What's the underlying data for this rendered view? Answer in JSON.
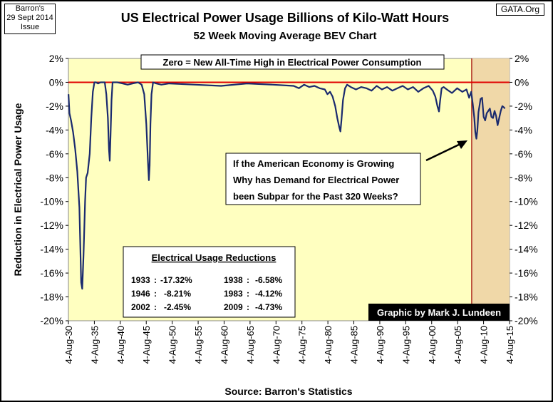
{
  "header": {
    "source_box": [
      "Barron's",
      "29 Sept 2014",
      "Issue"
    ],
    "credit_box": "GATA.Org",
    "title": "US Electrical Power Usage Billions of Kilo-Watt Hours",
    "subtitle": "52 Week Moving Average BEV Chart"
  },
  "annotations": {
    "zero_note": "Zero = New All-Time High in Electrical Power Consumption",
    "question_lines": [
      "If the American Economy is Growing",
      "Why has Demand for Electrical Power",
      "been Subpar for the Past 320 Weeks?"
    ],
    "reductions_title": "Electrical Usage Reductions",
    "reductions": [
      {
        "year": "1933",
        "value": "-17.32%"
      },
      {
        "year": "1938",
        "value": "-6.58%"
      },
      {
        "year": "1946",
        "value": "-8.21%"
      },
      {
        "year": "1983",
        "value": "-4.12%"
      },
      {
        "year": "2002",
        "value": "-2.45%"
      },
      {
        "year": "2009",
        "value": "-4.73%"
      }
    ],
    "graphic_credit": "Graphic by Mark J. Lundeen"
  },
  "colors": {
    "plot_bg": "#ffffc0",
    "shaded_region": "#f0d8a8",
    "series": "#1a2a6e",
    "zero_line": "#e00000",
    "credit_bg": "#000000"
  },
  "chart_data": {
    "type": "line",
    "title": "US Electrical Power Usage Billions of Kilo-Watt Hours",
    "subtitle": "52 Week Moving Average BEV Chart",
    "xlabel": "Source: Barron's Statistics",
    "ylabel": "Reduction in Electrical Power Usage",
    "ylim": [
      -20,
      2
    ],
    "xlim": [
      1930.59,
      2015.59
    ],
    "yticks": [
      "2%",
      "0%",
      "-2%",
      "-4%",
      "-6%",
      "-8%",
      "-10%",
      "-12%",
      "-14%",
      "-16%",
      "-18%",
      "-20%"
    ],
    "xticks": [
      "4-Aug-30",
      "4-Aug-35",
      "4-Aug-40",
      "4-Aug-45",
      "4-Aug-50",
      "4-Aug-55",
      "4-Aug-60",
      "4-Aug-65",
      "4-Aug-70",
      "4-Aug-75",
      "4-Aug-80",
      "4-Aug-85",
      "4-Aug-90",
      "4-Aug-95",
      "4-Aug-00",
      "4-Aug-05",
      "4-Aug-10",
      "4-Aug-15"
    ],
    "grid": false,
    "shaded_region": [
      2008.3,
      2015.59
    ],
    "series": [
      {
        "x": [
          1930.6,
          1930.8,
          1931.1,
          1931.5,
          1931.9,
          1932.3,
          1932.7,
          1932.9,
          1933.05,
          1933.25,
          1933.5,
          1933.8,
          1934.0,
          1934.3,
          1934.7,
          1935.0,
          1935.3,
          1935.6,
          1935.9,
          1936.3,
          1936.8,
          1937.2,
          1937.6,
          1937.9,
          1938.2,
          1938.4,
          1938.55,
          1938.7,
          1938.9,
          1939.1,
          1939.4,
          1940.0,
          1941.0,
          1942.0,
          1943.0,
          1944.0,
          1944.7,
          1945.2,
          1945.6,
          1945.9,
          1946.1,
          1946.25,
          1946.4,
          1946.6,
          1946.9,
          1947.5,
          1948.5,
          1950.0,
          1955.0,
          1960.0,
          1965.0,
          1970.0,
          1974.0,
          1975.0,
          1976.0,
          1977.0,
          1978.0,
          1979.0,
          1980.0,
          1980.5,
          1981.0,
          1981.5,
          1982.0,
          1982.4,
          1982.8,
          1983.0,
          1983.2,
          1983.5,
          1983.9,
          1984.3,
          1985.0,
          1986.0,
          1987.0,
          1988.0,
          1989.0,
          1990.0,
          1991.0,
          1992.0,
          1993.0,
          1994.0,
          1995.0,
          1996.0,
          1997.0,
          1998.0,
          1999.0,
          2000.0,
          2000.8,
          2001.3,
          2001.7,
          2002.0,
          2002.2,
          2002.5,
          2002.9,
          2003.5,
          2004.5,
          2005.5,
          2006.5,
          2007.3,
          2007.8,
          2008.2,
          2008.5,
          2008.8,
          2009.0,
          2009.2,
          2009.4,
          2009.6,
          2009.8,
          2010.0,
          2010.3,
          2010.6,
          2010.9,
          2011.2,
          2011.5,
          2011.8,
          2012.1,
          2012.4,
          2012.7,
          2013.0,
          2013.3,
          2013.6,
          2013.9,
          2014.2,
          2014.5,
          2014.7
        ],
        "y": [
          -1.0,
          -2.6,
          -3.2,
          -4.2,
          -5.6,
          -7.5,
          -10.5,
          -14.0,
          -16.8,
          -17.32,
          -14.5,
          -10.0,
          -8.0,
          -7.6,
          -6.0,
          -3.0,
          -0.8,
          0.0,
          0.0,
          -0.1,
          0.0,
          0.0,
          0.0,
          -1.0,
          -3.0,
          -5.6,
          -6.58,
          -4.5,
          -1.5,
          0.0,
          0.0,
          0.0,
          -0.1,
          -0.2,
          -0.1,
          0.0,
          -0.2,
          -1.0,
          -3.5,
          -6.5,
          -8.21,
          -7.0,
          -3.5,
          -1.0,
          0.0,
          -0.1,
          -0.2,
          -0.1,
          -0.2,
          -0.3,
          -0.1,
          -0.2,
          -0.3,
          -0.5,
          -0.2,
          -0.4,
          -0.3,
          -0.5,
          -0.6,
          -1.0,
          -0.8,
          -1.2,
          -2.0,
          -3.0,
          -3.8,
          -4.12,
          -3.2,
          -1.5,
          -0.5,
          -0.2,
          -0.4,
          -0.6,
          -0.4,
          -0.5,
          -0.7,
          -0.3,
          -0.6,
          -0.4,
          -0.7,
          -0.5,
          -0.3,
          -0.6,
          -0.4,
          -0.8,
          -0.5,
          -0.3,
          -0.7,
          -1.2,
          -2.0,
          -2.45,
          -1.6,
          -0.5,
          -0.4,
          -0.6,
          -0.9,
          -0.5,
          -0.8,
          -0.6,
          -1.3,
          -0.8,
          -1.8,
          -3.0,
          -4.2,
          -4.73,
          -4.0,
          -2.5,
          -2.0,
          -1.4,
          -1.3,
          -2.9,
          -3.2,
          -2.6,
          -2.4,
          -2.2,
          -2.9,
          -3.0,
          -2.4,
          -2.8,
          -3.6,
          -3.0,
          -2.4,
          -2.0,
          -2.1,
          -2.2
        ]
      }
    ]
  }
}
